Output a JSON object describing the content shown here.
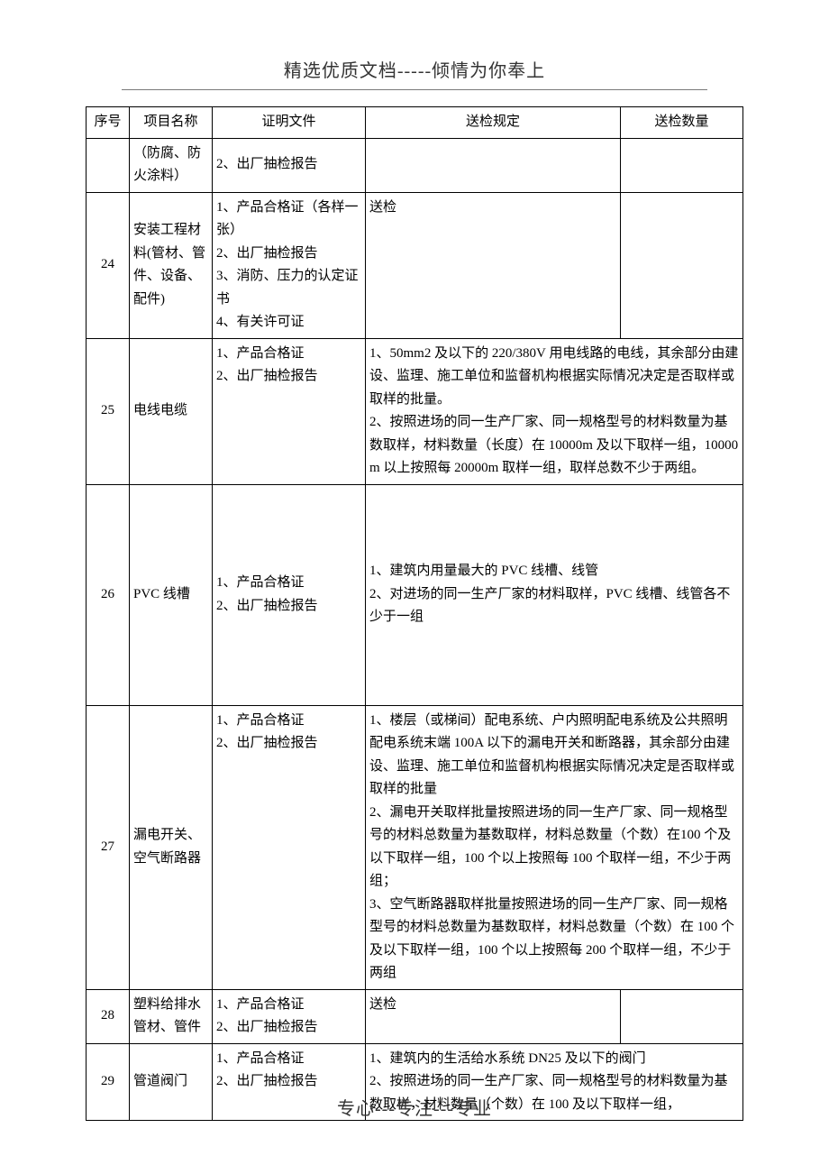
{
  "header": "精选优质文档-----倾情为你奉上",
  "footer": "专心---专注---专业",
  "columns": {
    "seq": "序号",
    "name": "项目名称",
    "cert": "证明文件",
    "rule": "送检规定",
    "qty": "送检数量"
  },
  "rows": {
    "r0": {
      "seq": "",
      "name": "（防腐、防火涂料）",
      "cert": "2、出厂抽检报告",
      "rule": "",
      "qty": ""
    },
    "r24": {
      "seq": "24",
      "name": "安装工程材料(管材、管件、设备、配件)",
      "cert": "1、产品合格证（各样一张）\n2、出厂抽检报告\n3、消防、压力的认定证书\n4、有关许可证",
      "rule": "送检",
      "qty": ""
    },
    "r25": {
      "seq": "25",
      "name": "电线电缆",
      "cert": "1、产品合格证\n2、出厂抽检报告",
      "rule": "1、50mm2 及以下的 220/380V 用电线路的电线，其余部分由建设、监理、施工单位和监督机构根据实际情况决定是否取样或取样的批量。\n2、按照进场的同一生产厂家、同一规格型号的材料数量为基数取样，材料数量（长度）在 10000m 及以下取样一组，10000m 以上按照每 20000m 取样一组，取样总数不少于两组。"
    },
    "r26": {
      "seq": "26",
      "name": "PVC 线槽",
      "cert": "1、产品合格证\n2、出厂抽检报告",
      "rule": "1、建筑内用量最大的 PVC 线槽、线管\n2、对进场的同一生产厂家的材料取样，PVC 线槽、线管各不少于一组"
    },
    "r27": {
      "seq": "27",
      "name": "漏电开关、空气断路器",
      "cert": "1、产品合格证\n2、出厂抽检报告",
      "rule": "1、楼层（或梯间）配电系统、户内照明配电系统及公共照明配电系统末端 100A 以下的漏电开关和断路器，其余部分由建设、监理、施工单位和监督机构根据实际情况决定是否取样或取样的批量\n2、漏电开关取样批量按照进场的同一生产厂家、同一规格型号的材料总数量为基数取样，材料总数量（个数）在100 个及以下取样一组，100 个以上按照每 100 个取样一组，不少于两组；\n3、空气断路器取样批量按照进场的同一生产厂家、同一规格型号的材料总数量为基数取样，材料总数量（个数）在 100 个及以下取样一组，100 个以上按照每 200 个取样一组，不少于两组"
    },
    "r28": {
      "seq": "28",
      "name": "塑料给排水管材、管件",
      "cert": "1、产品合格证\n2、出厂抽检报告",
      "rule": "送检",
      "qty": ""
    },
    "r29": {
      "seq": "29",
      "name": "管道阀门",
      "cert": "1、产品合格证\n2、出厂抽检报告",
      "rule": "1、建筑内的生活给水系统 DN25 及以下的阀门\n2、按照进场的同一生产厂家、同一规格型号的材料数量为基数取样，材料数量（个数）在 100 及以下取样一组，"
    }
  }
}
